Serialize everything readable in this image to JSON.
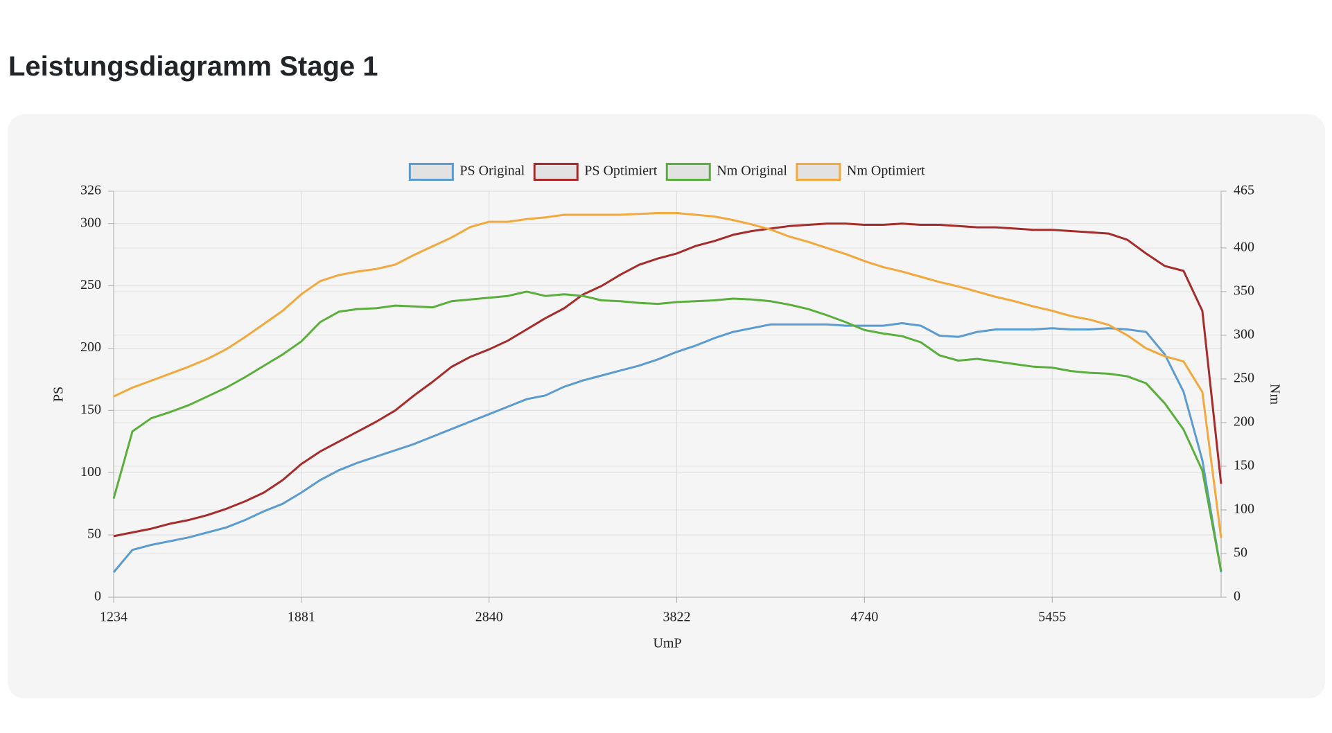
{
  "title": "Leistungsdiagramm Stage 1",
  "chart_data": {
    "type": "line",
    "xlabel": "UmP",
    "ylabel": "PS",
    "y2label": "Nm",
    "categories": [
      "1234",
      null,
      null,
      null,
      null,
      null,
      null,
      null,
      null,
      null,
      "1881",
      null,
      null,
      null,
      null,
      null,
      null,
      null,
      null,
      null,
      "2840",
      null,
      null,
      null,
      null,
      null,
      null,
      null,
      null,
      null,
      "3822",
      null,
      null,
      null,
      null,
      null,
      null,
      null,
      null,
      null,
      "4740",
      null,
      null,
      null,
      null,
      null,
      null,
      null,
      null,
      null,
      "5455",
      null,
      null,
      null,
      null,
      null,
      null,
      null,
      null,
      null
    ],
    "ylim": [
      0,
      326
    ],
    "yticks": [
      0,
      50,
      100,
      150,
      200,
      250,
      300,
      326
    ],
    "y2lim": [
      0,
      465
    ],
    "y2ticks": [
      0,
      50,
      100,
      150,
      200,
      250,
      300,
      350,
      400,
      465
    ],
    "grid": true,
    "legend": "top",
    "series": [
      {
        "name": "PS Original",
        "color": "#5b9bd0",
        "axis": "y",
        "values": [
          20,
          38,
          42,
          45,
          48,
          52,
          56,
          62,
          69,
          75,
          84,
          94,
          102,
          108,
          113,
          118,
          123,
          129,
          135,
          141,
          147,
          153,
          159,
          162,
          169,
          174,
          178,
          182,
          186,
          191,
          197,
          202,
          208,
          213,
          216,
          219,
          219,
          219,
          219,
          218,
          218,
          218,
          220,
          218,
          210,
          209,
          213,
          215,
          215,
          215,
          216,
          215,
          215,
          216,
          215,
          213,
          195,
          165,
          110,
          20
        ]
      },
      {
        "name": "PS Optimiert",
        "color": "#a62b2b",
        "axis": "y",
        "values": [
          49,
          52,
          55,
          59,
          62,
          66,
          71,
          77,
          84,
          94,
          107,
          117,
          125,
          133,
          141,
          150,
          162,
          173,
          185,
          193,
          199,
          206,
          215,
          224,
          232,
          243,
          250,
          259,
          267,
          272,
          276,
          282,
          286,
          291,
          294,
          296,
          298,
          299,
          300,
          300,
          299,
          299,
          300,
          299,
          299,
          298,
          297,
          297,
          296,
          295,
          295,
          294,
          293,
          292,
          287,
          276,
          266,
          262,
          230,
          91
        ]
      },
      {
        "name": "Nm Original",
        "color": "#5aaf3c",
        "axis": "y2",
        "values": [
          113,
          190,
          205,
          212,
          220,
          230,
          240,
          252,
          265,
          278,
          293,
          315,
          327,
          330,
          331,
          334,
          333,
          332,
          339,
          341,
          343,
          345,
          350,
          345,
          347,
          345,
          340,
          339,
          337,
          336,
          338,
          339,
          340,
          342,
          341,
          339,
          335,
          330,
          323,
          315,
          306,
          302,
          299,
          292,
          277,
          271,
          273,
          270,
          267,
          264,
          263,
          259,
          257,
          256,
          253,
          245,
          222,
          192,
          145,
          30
        ]
      },
      {
        "name": "Nm Optimiert",
        "color": "#f2a83c",
        "axis": "y2",
        "values": [
          230,
          240,
          248,
          256,
          264,
          273,
          284,
          298,
          313,
          328,
          347,
          362,
          369,
          373,
          376,
          381,
          392,
          402,
          412,
          424,
          430,
          430,
          433,
          435,
          438,
          438,
          438,
          438,
          439,
          440,
          440,
          438,
          436,
          432,
          427,
          421,
          413,
          407,
          400,
          393,
          385,
          378,
          373,
          367,
          361,
          356,
          350,
          344,
          339,
          333,
          328,
          322,
          318,
          312,
          300,
          285,
          276,
          270,
          235,
          68
        ]
      }
    ]
  }
}
